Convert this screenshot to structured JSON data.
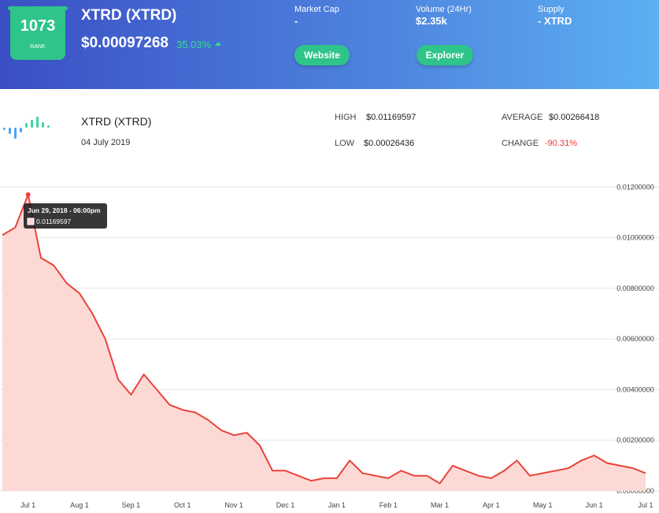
{
  "header": {
    "rank": "1073",
    "rank_label": "RANK",
    "name": "XTRD (XTRD)",
    "price": "$0.00097268",
    "change": "35.03%",
    "stats": [
      {
        "label": "Market Cap",
        "value": "-"
      },
      {
        "label": "Volume (24Hr)",
        "value": "$2.35k"
      },
      {
        "label": "Supply",
        "value": "- XTRD"
      }
    ],
    "buttons": [
      "Website",
      "Explorer"
    ]
  },
  "info": {
    "name": "XTRD (XTRD)",
    "date": "04 July 2019",
    "stats": [
      {
        "label": "HIGH",
        "value": "$0.01169597"
      },
      {
        "label": "LOW",
        "value": "$0.00026436"
      },
      {
        "label": "AVERAGE",
        "value": "$0.00266418"
      },
      {
        "label": "CHANGE",
        "value": "-90.31%"
      }
    ]
  },
  "chart_data": {
    "type": "line",
    "color": "#e8433a",
    "fill": "#fdd9d6",
    "categories": [
      null,
      null,
      "Jul 1",
      null,
      null,
      null,
      "Aug 1",
      null,
      null,
      null,
      "Sep 1",
      null,
      null,
      null,
      "Oct 1",
      null,
      null,
      null,
      "Nov 1",
      null,
      null,
      null,
      "Dec 1",
      null,
      null,
      null,
      "Jan 1",
      null,
      null,
      null,
      "Feb 1",
      null,
      null,
      null,
      "Mar 1",
      null,
      null,
      null,
      "Apr 1",
      null,
      null,
      null,
      "May 1",
      null,
      null,
      null,
      "Jun 1",
      null,
      null,
      null,
      "Jul 1"
    ],
    "values": [
      0.0101,
      0.0104,
      0.01169597,
      0.0092,
      0.0089,
      0.0082,
      0.0078,
      0.007,
      0.006,
      0.0044,
      0.0038,
      0.0046,
      0.004,
      0.0034,
      0.0032,
      0.0031,
      0.0028,
      0.0024,
      0.0022,
      0.0023,
      0.0018,
      0.0008,
      0.0008,
      0.0006,
      0.0004,
      0.0005,
      0.0005,
      0.0012,
      0.0007,
      0.0006,
      0.0005,
      0.0008,
      0.0006,
      0.0006,
      0.0003,
      0.001,
      0.0008,
      0.0006,
      0.0005,
      0.0008,
      0.0012,
      0.0006,
      0.0007,
      0.0008,
      0.0009,
      0.0012,
      0.0014,
      0.0011,
      0.001,
      0.0009,
      0.0007
    ],
    "ylim": [
      0,
      0.0126
    ],
    "yticks": [
      {
        "value": 0,
        "label": "0.00000000"
      },
      {
        "value": 0.002,
        "label": "0.00200000"
      },
      {
        "value": 0.004,
        "label": "0.00400000"
      },
      {
        "value": 0.006,
        "label": "0.00600000"
      },
      {
        "value": 0.008,
        "label": "0.00800000"
      },
      {
        "value": 0.01,
        "label": "0.01000000"
      },
      {
        "value": 0.012,
        "label": "0.01200000"
      }
    ],
    "grid": true,
    "tooltip": {
      "label": "Jun 29, 2018 - 06:00pm",
      "value": 0.01169597
    }
  }
}
